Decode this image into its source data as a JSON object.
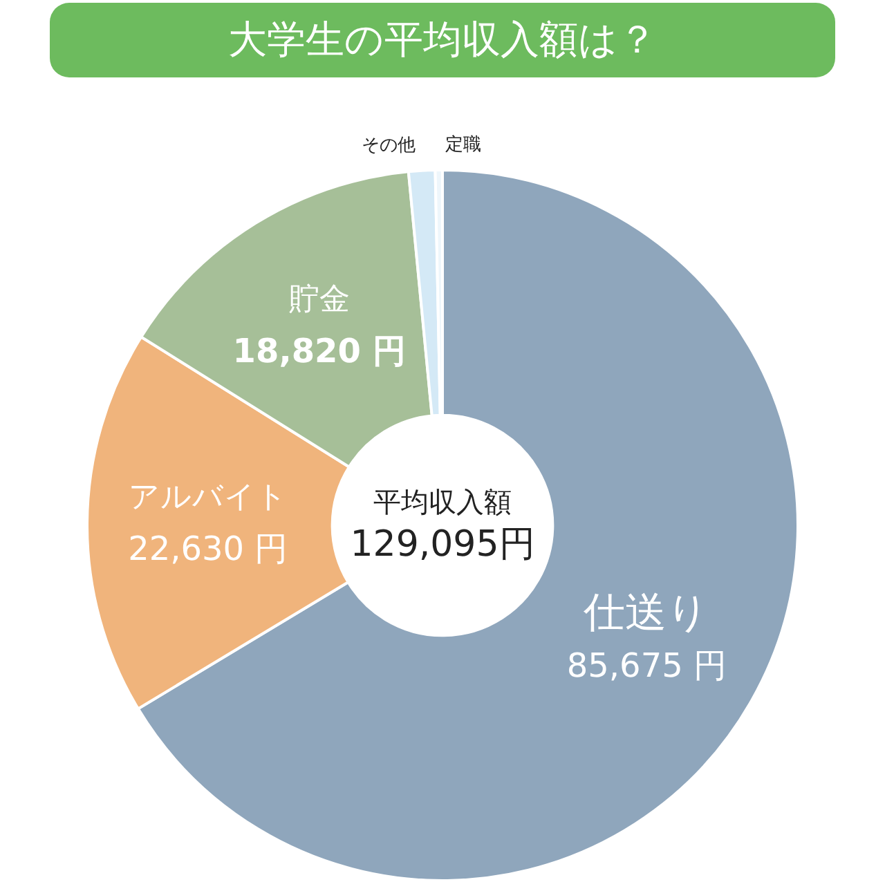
{
  "chart_data": {
    "type": "donut",
    "title": "大学生の平均収入額は？",
    "categories": [
      "仕送り",
      "アルバイト",
      "貯金",
      "その他",
      "定職"
    ],
    "values": [
      85675,
      22630,
      18820,
      1550,
      420
    ],
    "colors": [
      "#8fa6bc",
      "#f0b47c",
      "#a6bf98",
      "#d4e9f6",
      "#eef6fb"
    ],
    "value_labels": [
      "85,675 円",
      "22,630 円",
      "18,820 円",
      null,
      null
    ],
    "annotations": [
      "平均収入額",
      "129,095円"
    ],
    "legend": false
  }
}
